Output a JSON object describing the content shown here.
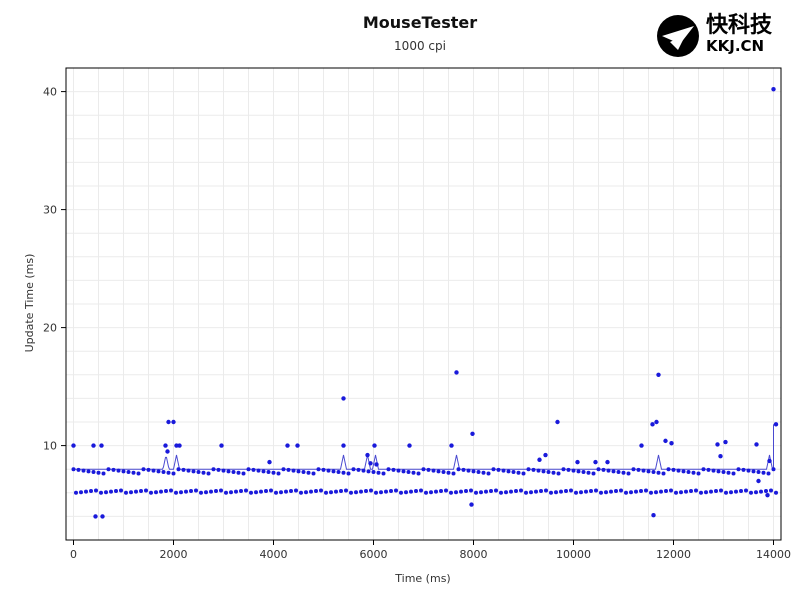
{
  "logo": {
    "cn_text": "快科技",
    "en_text": "KKJ.CN"
  },
  "chart_data": {
    "type": "scatter",
    "title": "MouseTester",
    "subtitle": "1000 cpi",
    "xlabel": "Time (ms)",
    "ylabel": "Update Time (ms)",
    "xlim": [
      -150,
      14150
    ],
    "ylim": [
      2,
      42
    ],
    "x_ticks": [
      0,
      2000,
      4000,
      6000,
      8000,
      10000,
      12000,
      14000
    ],
    "y_ticks": [
      10,
      20,
      30,
      40
    ],
    "grid": true,
    "legend": "none",
    "colors": {
      "points": "#1a1adb",
      "line": "#4a4ad0",
      "grid": "#ebebeb",
      "axis": "#000000"
    },
    "series": [
      {
        "values": [
          [
            0,
            10
          ],
          [
            400,
            10
          ],
          [
            560,
            10
          ],
          [
            440,
            4
          ],
          [
            580,
            4
          ],
          [
            1840,
            10
          ],
          [
            1880,
            9.5
          ],
          [
            1900,
            12
          ],
          [
            2000,
            12
          ],
          [
            2060,
            10
          ],
          [
            2120,
            10
          ],
          [
            2960,
            10
          ],
          [
            4280,
            10
          ],
          [
            4480,
            10
          ],
          [
            3920,
            8.6
          ],
          [
            5400,
            14
          ],
          [
            5400,
            10
          ],
          [
            5880,
            9.2
          ],
          [
            5940,
            8.5
          ],
          [
            6020,
            10
          ],
          [
            6060,
            8.4
          ],
          [
            6720,
            10
          ],
          [
            7560,
            10
          ],
          [
            7660,
            16.2
          ],
          [
            7980,
            11
          ],
          [
            7960,
            5
          ],
          [
            9320,
            8.8
          ],
          [
            9440,
            9.2
          ],
          [
            9680,
            12
          ],
          [
            10080,
            8.6
          ],
          [
            10440,
            8.6
          ],
          [
            10680,
            8.6
          ],
          [
            11360,
            10
          ],
          [
            11580,
            11.8
          ],
          [
            11600,
            4.1
          ],
          [
            11660,
            12
          ],
          [
            11700,
            16
          ],
          [
            11840,
            10.4
          ],
          [
            11960,
            10.2
          ],
          [
            12880,
            10.1
          ],
          [
            13040,
            10.3
          ],
          [
            12940,
            9.1
          ],
          [
            13660,
            10.1
          ],
          [
            13920,
            8.7
          ],
          [
            14000,
            40.2
          ],
          [
            14050,
            11.8
          ],
          [
            13880,
            5.8
          ],
          [
            13700,
            7
          ]
        ]
      }
    ],
    "dense_band": {
      "start": 0,
      "end": 14000,
      "step": 100,
      "top": 8,
      "bottom": 6,
      "line": 8
    }
  }
}
